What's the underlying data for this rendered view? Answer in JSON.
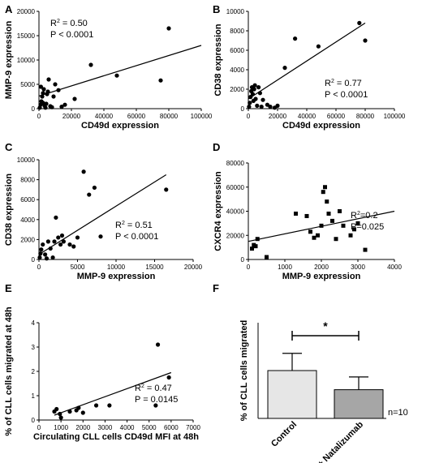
{
  "figure_labels": [
    "A",
    "B",
    "C",
    "D",
    "E",
    "F"
  ],
  "chart_data": [
    {
      "panel": "A",
      "type": "scatter",
      "xlabel": "CD49d expression",
      "ylabel": "MMP-9 expression",
      "xlim": [
        0,
        100000
      ],
      "ylim": [
        0,
        20000
      ],
      "xticks": [
        0,
        20000,
        40000,
        60000,
        80000,
        100000
      ],
      "yticks": [
        0,
        5000,
        10000,
        15000,
        20000
      ],
      "points": [
        [
          500,
          200
        ],
        [
          1000,
          800
        ],
        [
          1500,
          1500
        ],
        [
          2000,
          2500
        ],
        [
          2500,
          3200
        ],
        [
          3000,
          4000
        ],
        [
          1200,
          4500
        ],
        [
          2500,
          1200
        ],
        [
          3500,
          600
        ],
        [
          4000,
          200
        ],
        [
          4500,
          1000
        ],
        [
          5000,
          3000
        ],
        [
          5500,
          3500
        ],
        [
          6000,
          6000
        ],
        [
          7000,
          500
        ],
        [
          8000,
          300
        ],
        [
          9000,
          2500
        ],
        [
          10000,
          5000
        ],
        [
          12000,
          3800
        ],
        [
          14000,
          400
        ],
        [
          16000,
          800
        ],
        [
          22000,
          2000
        ],
        [
          32000,
          9000
        ],
        [
          48000,
          6800
        ],
        [
          75000,
          5800
        ],
        [
          80000,
          16500
        ]
      ],
      "fit": [
        [
          0,
          2600
        ],
        [
          100000,
          13000
        ]
      ],
      "stats": {
        "r2": "R² = 0.50",
        "p": "P < 0.0001"
      }
    },
    {
      "panel": "B",
      "type": "scatter",
      "xlabel": "CD49d expression",
      "ylabel": "CD38 expression",
      "xlim": [
        0,
        100000
      ],
      "ylim": [
        0,
        10000
      ],
      "xticks": [
        0,
        20000,
        40000,
        60000,
        80000,
        100000
      ],
      "yticks": [
        0,
        2000,
        4000,
        6000,
        8000,
        10000
      ],
      "points": [
        [
          500,
          200
        ],
        [
          1000,
          600
        ],
        [
          1500,
          1200
        ],
        [
          2000,
          1800
        ],
        [
          2500,
          2200
        ],
        [
          3000,
          1500
        ],
        [
          3500,
          800
        ],
        [
          4000,
          2000
        ],
        [
          4500,
          2400
        ],
        [
          5000,
          1000
        ],
        [
          6000,
          300
        ],
        [
          7000,
          2200
        ],
        [
          8000,
          1600
        ],
        [
          9000,
          200
        ],
        [
          10000,
          900
        ],
        [
          13000,
          400
        ],
        [
          15000,
          200
        ],
        [
          18000,
          100
        ],
        [
          20000,
          300
        ],
        [
          25000,
          4200
        ],
        [
          32000,
          7200
        ],
        [
          48000,
          6400
        ],
        [
          76000,
          8800
        ],
        [
          80000,
          7000
        ]
      ],
      "fit": [
        [
          0,
          1000
        ],
        [
          80000,
          8800
        ]
      ],
      "stats": {
        "r2": "R² = 0.77",
        "p": "P < 0.0001"
      }
    },
    {
      "panel": "C",
      "type": "scatter",
      "xlabel": "MMP-9 expression",
      "ylabel": "CD38 expression",
      "xlim": [
        0,
        20000
      ],
      "ylim": [
        0,
        10000
      ],
      "xticks": [
        0,
        5000,
        10000,
        15000,
        20000
      ],
      "yticks": [
        0,
        2000,
        4000,
        6000,
        8000,
        10000
      ],
      "points": [
        [
          100,
          200
        ],
        [
          200,
          600
        ],
        [
          300,
          1000
        ],
        [
          500,
          1500
        ],
        [
          800,
          500
        ],
        [
          1000,
          100
        ],
        [
          1200,
          1800
        ],
        [
          1500,
          1100
        ],
        [
          1800,
          200
        ],
        [
          2000,
          1800
        ],
        [
          2200,
          4200
        ],
        [
          2500,
          2200
        ],
        [
          2800,
          1500
        ],
        [
          3000,
          2400
        ],
        [
          3200,
          1800
        ],
        [
          4000,
          1500
        ],
        [
          4500,
          1300
        ],
        [
          5000,
          2200
        ],
        [
          5800,
          8800
        ],
        [
          6500,
          6500
        ],
        [
          7200,
          7200
        ],
        [
          8000,
          2300
        ],
        [
          16500,
          7000
        ]
      ],
      "fit": [
        [
          0,
          500
        ],
        [
          16500,
          8500
        ]
      ],
      "stats": {
        "r2": "R² = 0.51",
        "p": "P < 0.0001"
      }
    },
    {
      "panel": "D",
      "type": "scatter",
      "xlabel": "MMP-9 expression",
      "ylabel": "CXCR4 expression",
      "xlim": [
        0,
        4000
      ],
      "ylim": [
        0,
        80000
      ],
      "xticks": [
        0,
        1000,
        2000,
        3000,
        4000
      ],
      "yticks": [
        0,
        20000,
        40000,
        60000,
        80000
      ],
      "points": [
        [
          100,
          9000
        ],
        [
          150,
          12000
        ],
        [
          200,
          11000
        ],
        [
          250,
          17000
        ],
        [
          500,
          2000
        ],
        [
          1300,
          38000
        ],
        [
          1600,
          36000
        ],
        [
          1700,
          23000
        ],
        [
          1800,
          18000
        ],
        [
          1900,
          20000
        ],
        [
          2000,
          28000
        ],
        [
          2050,
          56000
        ],
        [
          2100,
          60000
        ],
        [
          2150,
          48000
        ],
        [
          2200,
          38000
        ],
        [
          2300,
          32000
        ],
        [
          2400,
          17000
        ],
        [
          2500,
          40000
        ],
        [
          2600,
          28000
        ],
        [
          2800,
          20000
        ],
        [
          2900,
          25000
        ],
        [
          3000,
          30000
        ],
        [
          3200,
          8000
        ]
      ],
      "fit": [
        [
          0,
          15000
        ],
        [
          4000,
          40000
        ]
      ],
      "stats": {
        "r2": "R²=0.2",
        "p": "P=0.025"
      }
    },
    {
      "panel": "E",
      "type": "scatter",
      "xlabel": "Circulating CLL cells CD49d MFI at 48h",
      "ylabel": "% of CLL cells migrated at 48h",
      "xlim": [
        0,
        7000
      ],
      "ylim": [
        0,
        4
      ],
      "xticks": [
        0,
        1000,
        2000,
        3000,
        4000,
        5000,
        6000,
        7000
      ],
      "yticks": [
        0,
        1,
        2,
        3,
        4
      ],
      "points": [
        [
          700,
          0.35
        ],
        [
          800,
          0.45
        ],
        [
          950,
          0.25
        ],
        [
          1000,
          0.1
        ],
        [
          1400,
          0.35
        ],
        [
          1700,
          0.4
        ],
        [
          1800,
          0.5
        ],
        [
          2000,
          0.3
        ],
        [
          2600,
          0.6
        ],
        [
          3200,
          0.6
        ],
        [
          5300,
          0.6
        ],
        [
          5400,
          3.1
        ],
        [
          5900,
          1.75
        ]
      ],
      "fit": [
        [
          700,
          0.2
        ],
        [
          6000,
          1.95
        ]
      ],
      "stats": {
        "r2": "R² = 0.47",
        "p": "P = 0.0145"
      }
    },
    {
      "panel": "F",
      "type": "bar",
      "ylabel": "% of CLL cells migrated",
      "ylim": [
        0,
        1.5
      ],
      "categories": [
        "Control",
        "+ Natalizumab"
      ],
      "values": [
        0.75,
        0.45
      ],
      "errors": [
        0.27,
        0.2
      ],
      "colors": [
        "#e6e6e6",
        "#a6a6a6"
      ],
      "significance": "*",
      "note": "n=10"
    }
  ]
}
